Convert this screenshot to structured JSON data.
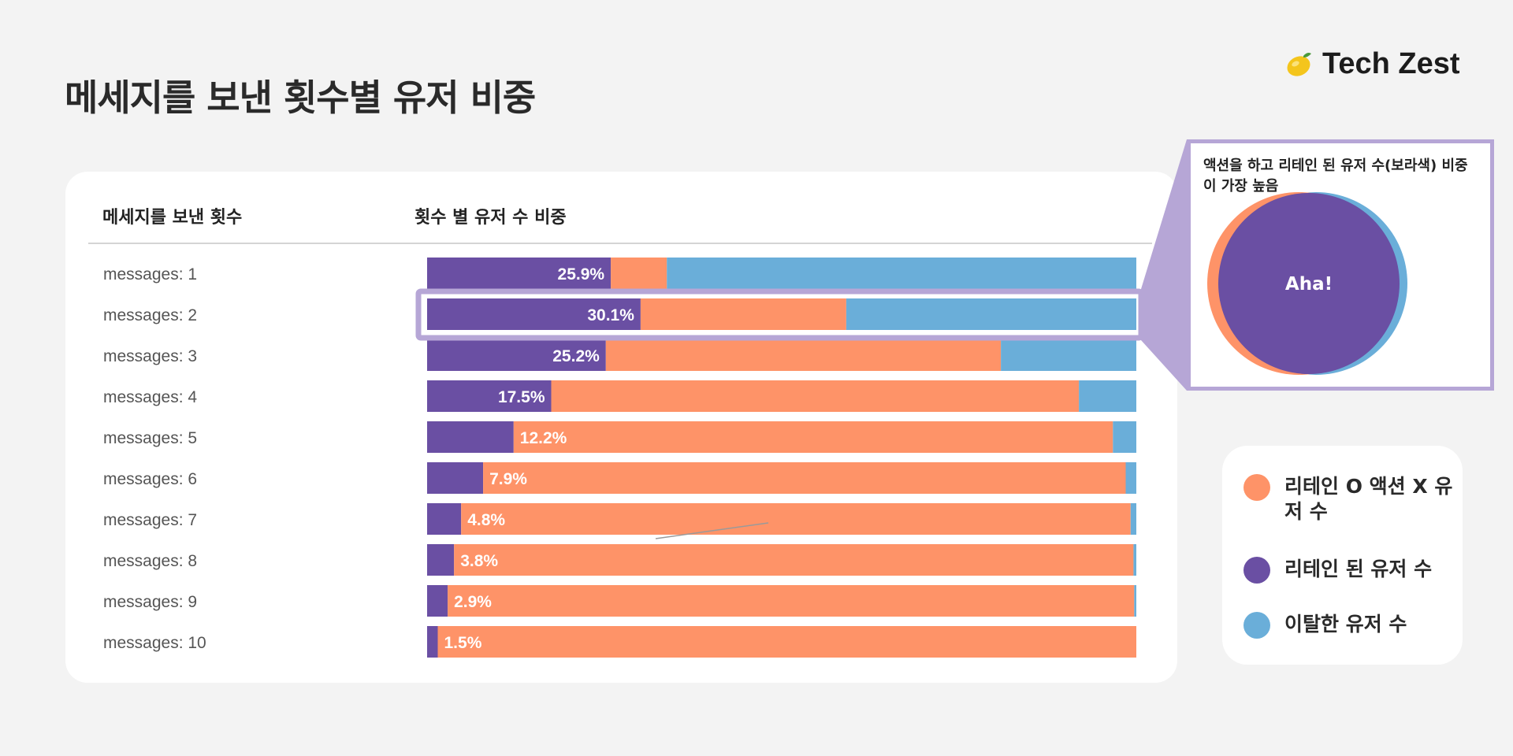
{
  "page": {
    "title": "메세지를 보낸 횟수별 유저 비중",
    "brand_name": "Tech Zest",
    "brand_icon": "lemon-icon"
  },
  "table": {
    "col1_header": "메세지를 보낸 횟수",
    "col2_header": "횟수 별 유저 수 비중"
  },
  "colors": {
    "retained": "#6a4fa3",
    "retain_o_action_x": "#fe9368",
    "churned": "#6aaed9",
    "highlight_border": "#b6a6d6"
  },
  "callout": {
    "text": "액션을 하고 리테인 된 유저 수(보라색) 비중이 가장 높음",
    "venn_center_label": "Aha!"
  },
  "legend": {
    "items": [
      {
        "label": "리테인 O 액션 X 유저 수",
        "color": "#fe9368"
      },
      {
        "label": "리테인 된 유저 수",
        "color": "#6a4fa3"
      },
      {
        "label": "이탈한 유저 수",
        "color": "#6aaed9"
      }
    ]
  },
  "chart_data": {
    "type": "bar",
    "orientation": "horizontal",
    "stacked": "percent",
    "categories": [
      "messages: 1",
      "messages: 2",
      "messages: 3",
      "messages: 4",
      "messages: 5",
      "messages: 6",
      "messages: 7",
      "messages: 8",
      "messages: 9",
      "messages: 10"
    ],
    "series": [
      {
        "name": "리테인 된 유저 수",
        "color": "#6a4fa3",
        "values": [
          25.9,
          30.1,
          25.2,
          17.5,
          12.2,
          7.9,
          4.8,
          3.8,
          2.9,
          1.5
        ]
      },
      {
        "name": "리테인 O 액션 X 유저 수",
        "color": "#fe9368",
        "values": [
          7.9,
          29.0,
          55.7,
          74.4,
          84.5,
          90.6,
          94.4,
          95.8,
          96.8,
          98.5
        ]
      },
      {
        "name": "이탈한 유저 수",
        "color": "#6aaed9",
        "values": [
          66.2,
          40.9,
          19.1,
          8.1,
          3.3,
          1.5,
          0.8,
          0.4,
          0.3,
          0.0
        ]
      }
    ],
    "value_labels": [
      "25.9%",
      "30.1%",
      "25.2%",
      "17.5%",
      "12.2%",
      "7.9%",
      "4.8%",
      "3.8%",
      "2.9%",
      "1.5%"
    ],
    "highlighted_category": "messages: 2",
    "xlim": [
      0,
      100
    ]
  }
}
